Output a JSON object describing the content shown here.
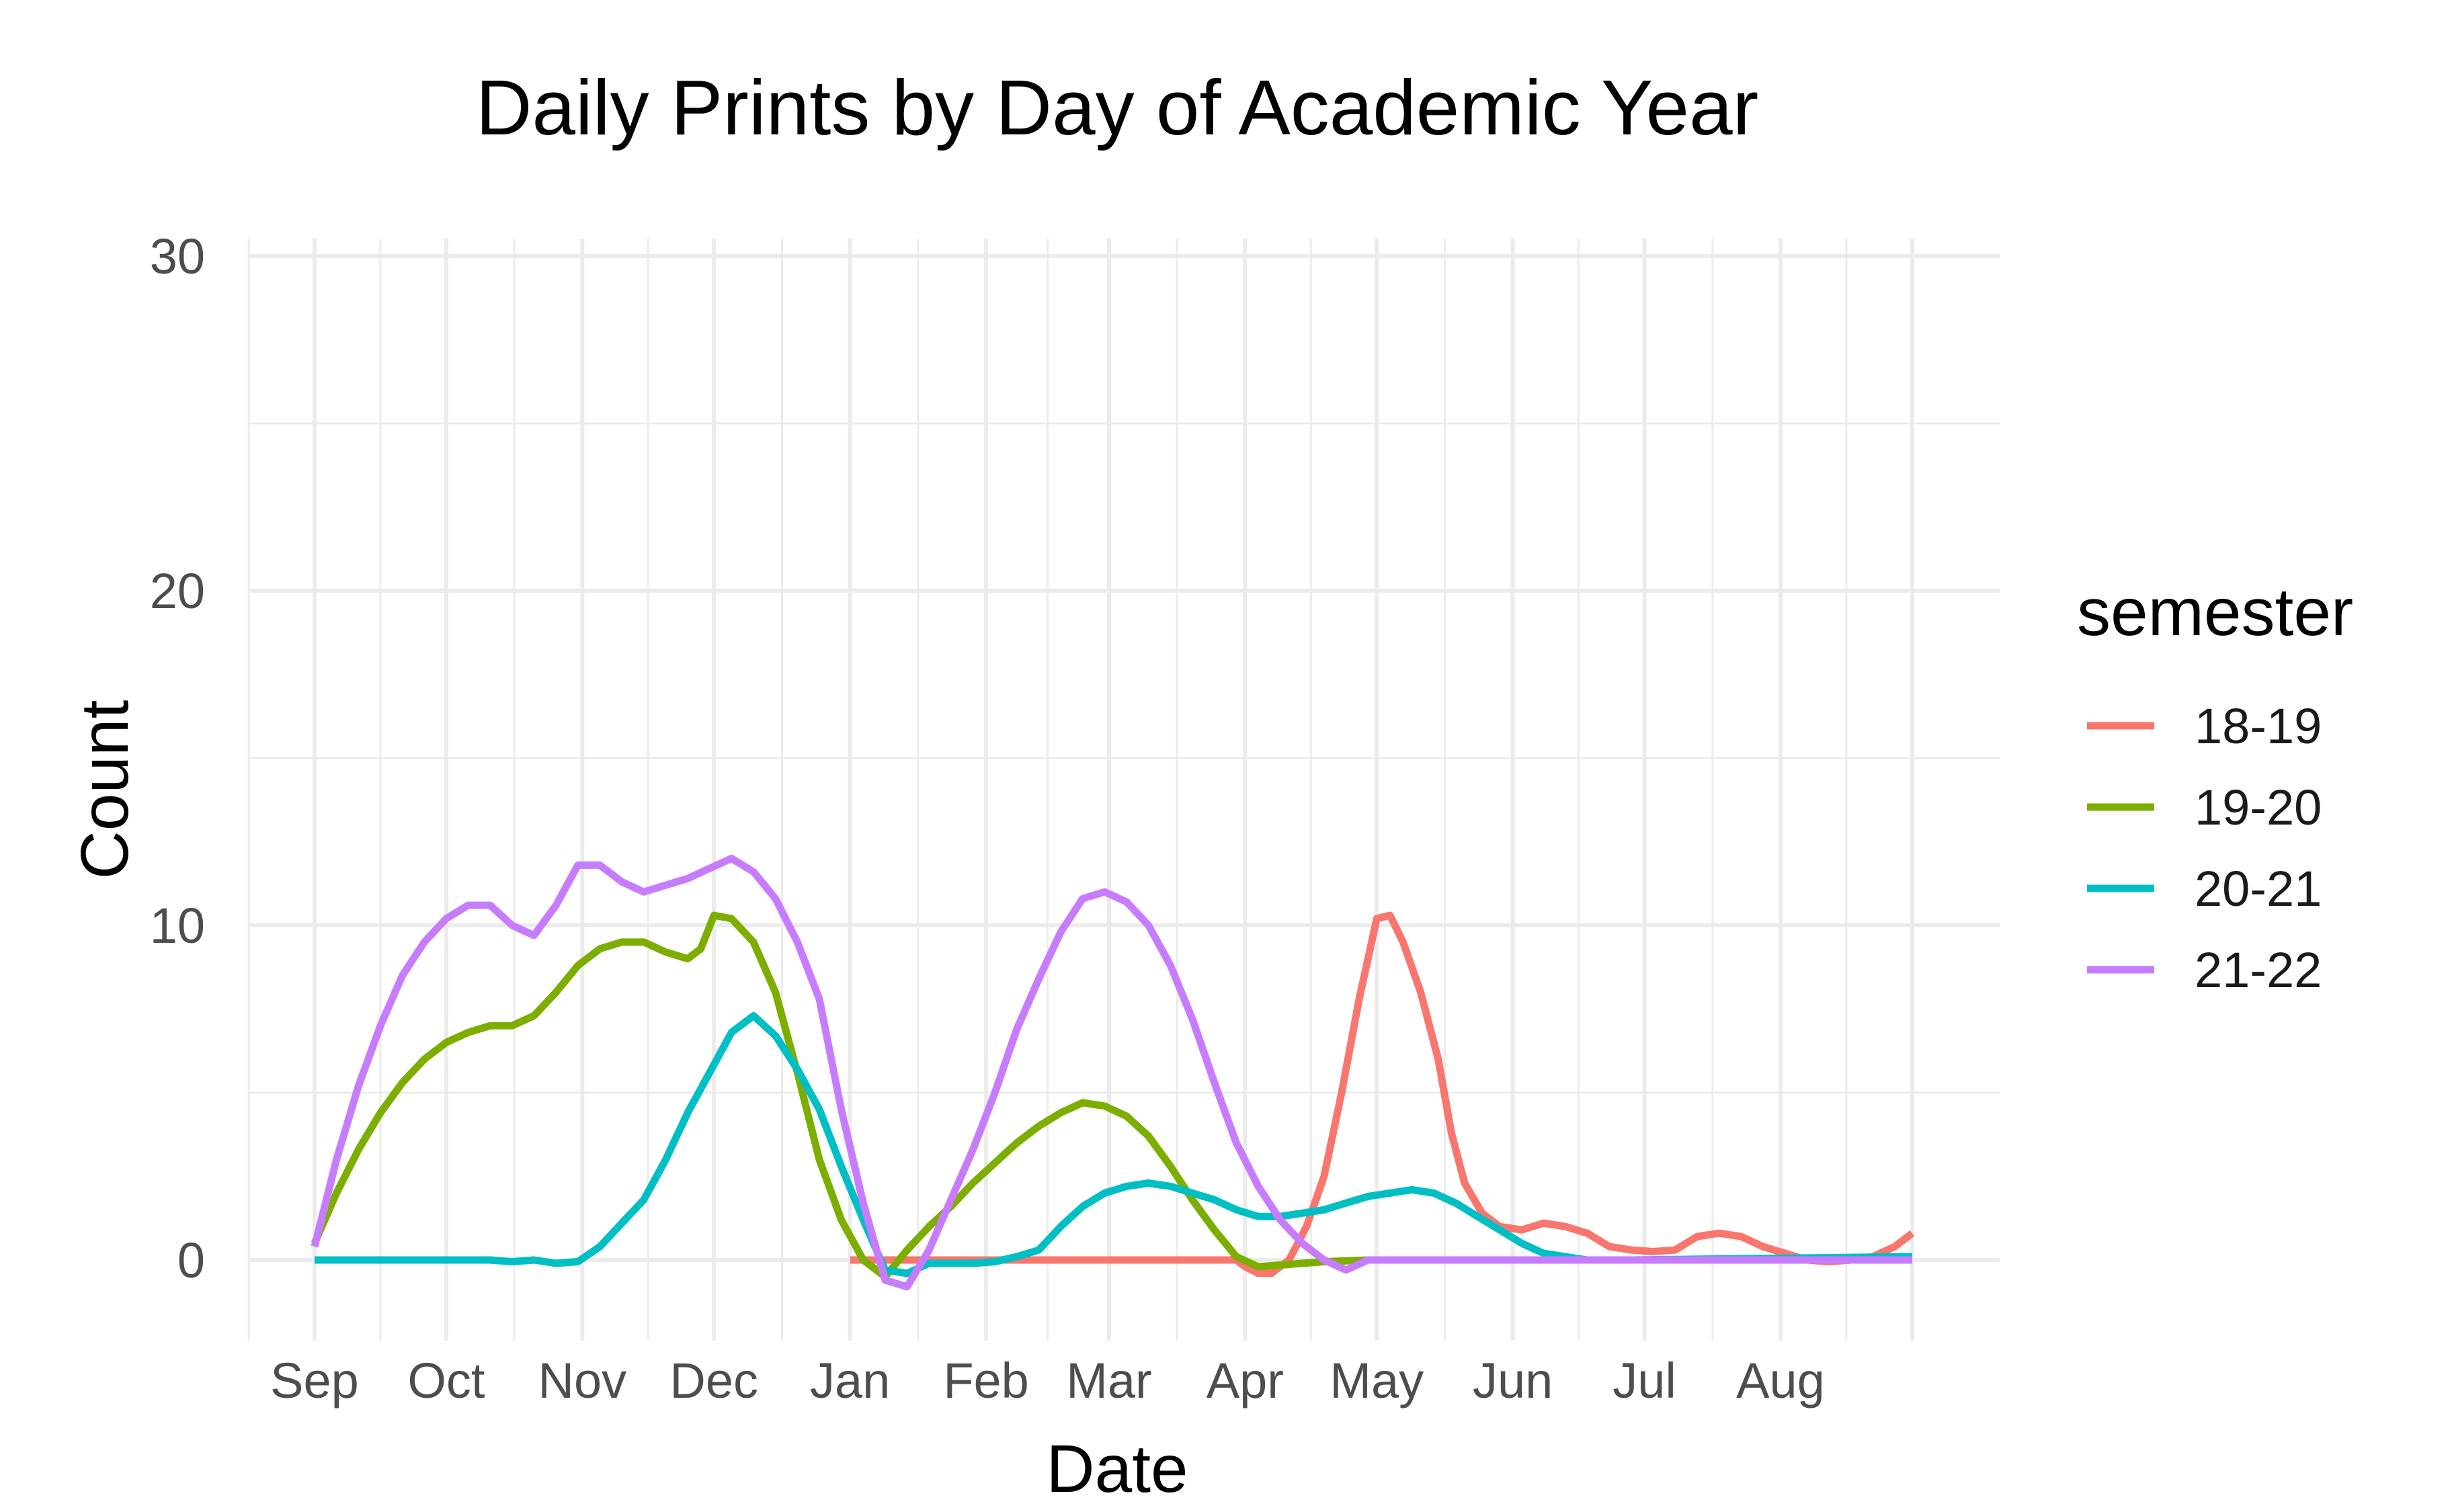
{
  "chart_data": {
    "type": "line",
    "title": "Daily Prints by Day of Academic Year",
    "xlabel": "Date",
    "ylabel": "Count",
    "x_tick_labels": [
      "Sep",
      "Oct",
      "Nov",
      "Dec",
      "Jan",
      "Feb",
      "Mar",
      "Apr",
      "May",
      "Jun",
      "Jul",
      "Aug"
    ],
    "x_tick_days": [
      0,
      30,
      61,
      91,
      122,
      153,
      181,
      212,
      242,
      273,
      303,
      334
    ],
    "x_range_days": [
      -15,
      380
    ],
    "ylim": [
      -2.4,
      30.6
    ],
    "y_ticks": [
      0,
      10,
      20,
      30
    ],
    "grid": true,
    "legend_title": "semester",
    "legend_position": "right",
    "x_unit": "day of academic year (from Sep 1)",
    "series": [
      {
        "name": "18-19",
        "color": "#F8766D",
        "x": [
          122,
          150,
          170,
          190,
          210,
          212,
          215,
          218,
          222,
          226,
          230,
          234,
          238,
          240,
          242,
          245,
          248,
          252,
          256,
          259,
          262,
          266,
          270,
          275,
          280,
          285,
          290,
          295,
          300,
          305,
          310,
          315,
          320,
          325,
          330,
          335,
          340,
          345,
          350,
          355,
          360,
          364
        ],
        "values": [
          0,
          0,
          0,
          0,
          0,
          -0.2,
          -0.4,
          -0.4,
          0,
          1.0,
          2.5,
          5.0,
          7.8,
          9.0,
          10.2,
          10.3,
          9.5,
          8.0,
          6.0,
          3.8,
          2.3,
          1.4,
          1.0,
          0.9,
          1.1,
          1.0,
          0.8,
          0.4,
          0.3,
          0.25,
          0.3,
          0.7,
          0.8,
          0.7,
          0.4,
          0.2,
          0.0,
          -0.05,
          0.0,
          0.1,
          0.4,
          0.8
        ]
      },
      {
        "name": "19-20",
        "color": "#7CAE00",
        "x": [
          0,
          5,
          10,
          15,
          20,
          25,
          30,
          35,
          40,
          45,
          50,
          55,
          60,
          65,
          70,
          75,
          80,
          85,
          88,
          91,
          95,
          100,
          105,
          110,
          115,
          120,
          125,
          130,
          135,
          140,
          145,
          150,
          155,
          160,
          165,
          170,
          175,
          180,
          185,
          190,
          195,
          200,
          205,
          210,
          215,
          220,
          225,
          230,
          240,
          260,
          300,
          364
        ],
        "values": [
          0.5,
          2.0,
          3.3,
          4.4,
          5.3,
          6.0,
          6.5,
          6.8,
          7.0,
          7.0,
          7.3,
          8.0,
          8.8,
          9.3,
          9.5,
          9.5,
          9.2,
          9.0,
          9.3,
          10.3,
          10.2,
          9.5,
          8.0,
          5.6,
          3.0,
          1.2,
          0.0,
          -0.5,
          0.3,
          1.0,
          1.6,
          2.3,
          2.9,
          3.5,
          4.0,
          4.4,
          4.7,
          4.6,
          4.3,
          3.7,
          2.8,
          1.8,
          0.9,
          0.1,
          -0.2,
          -0.15,
          -0.1,
          -0.05,
          0,
          0,
          0,
          0
        ]
      },
      {
        "name": "20-21",
        "color": "#00BFC4",
        "x": [
          0,
          20,
          40,
          45,
          50,
          55,
          60,
          65,
          70,
          75,
          80,
          85,
          90,
          95,
          100,
          105,
          110,
          115,
          120,
          125,
          130,
          135,
          140,
          145,
          150,
          155,
          160,
          165,
          170,
          175,
          180,
          185,
          190,
          195,
          200,
          205,
          210,
          215,
          220,
          225,
          230,
          235,
          240,
          245,
          250,
          255,
          260,
          265,
          270,
          275,
          280,
          290,
          300,
          364
        ],
        "values": [
          0,
          0,
          0,
          -0.05,
          0,
          -0.1,
          -0.05,
          0.4,
          1.1,
          1.8,
          3.0,
          4.4,
          5.6,
          6.8,
          7.3,
          6.7,
          5.7,
          4.5,
          2.8,
          1.2,
          -0.3,
          -0.4,
          -0.1,
          -0.1,
          -0.1,
          -0.05,
          0.1,
          0.3,
          1.0,
          1.6,
          2.0,
          2.2,
          2.3,
          2.2,
          2.0,
          1.8,
          1.5,
          1.3,
          1.3,
          1.4,
          1.5,
          1.7,
          1.9,
          2.0,
          2.1,
          2.0,
          1.7,
          1.3,
          0.9,
          0.5,
          0.2,
          0,
          0,
          0.1
        ]
      },
      {
        "name": "21-22",
        "color": "#C77CFF",
        "x": [
          0,
          5,
          10,
          15,
          20,
          25,
          30,
          35,
          40,
          45,
          50,
          55,
          60,
          65,
          70,
          75,
          80,
          85,
          90,
          95,
          100,
          105,
          110,
          115,
          120,
          125,
          130,
          135,
          140,
          145,
          150,
          155,
          160,
          165,
          170,
          175,
          180,
          185,
          190,
          195,
          200,
          205,
          210,
          215,
          220,
          225,
          230,
          235,
          240,
          260,
          300,
          364
        ],
        "values": [
          0.4,
          3.0,
          5.2,
          7.0,
          8.5,
          9.5,
          10.2,
          10.6,
          10.6,
          10.0,
          9.7,
          10.6,
          11.8,
          11.8,
          11.3,
          11.0,
          11.2,
          11.4,
          11.7,
          12.0,
          11.6,
          10.8,
          9.5,
          7.8,
          4.5,
          1.7,
          -0.6,
          -0.8,
          0.3,
          1.8,
          3.3,
          5.0,
          6.9,
          8.4,
          9.8,
          10.8,
          11.0,
          10.7,
          10.0,
          8.8,
          7.2,
          5.3,
          3.5,
          2.2,
          1.2,
          0.5,
          0.0,
          -0.3,
          0.0,
          0,
          0,
          0
        ]
      }
    ]
  }
}
